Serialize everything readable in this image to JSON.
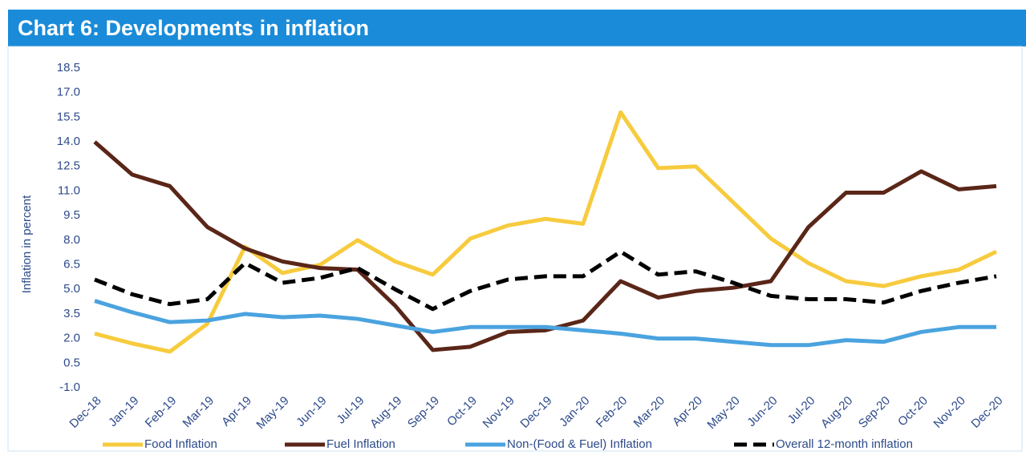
{
  "chart_data": {
    "type": "line",
    "title": "Chart 6: Developments in inflation",
    "y_label": "Inflation in percent",
    "categories": [
      "Dec-18",
      "Jan-19",
      "Feb-19",
      "Mar-19",
      "Apr-19",
      "May-19",
      "Jun-19",
      "Jul-19",
      "Aug-19",
      "Sep-19",
      "Oct-19",
      "Nov-19",
      "Dec-19",
      "Jan-20",
      "Feb-20",
      "Mar-20",
      "Apr-20",
      "May-20",
      "Jun-20",
      "Jul-20",
      "Aug-20",
      "Sep-20",
      "Oct-20",
      "Nov-20",
      "Dec-20"
    ],
    "series": [
      {
        "name": "Food Inflation",
        "color": "#f7cb3e",
        "values": [
          2.3,
          1.7,
          1.2,
          2.9,
          7.6,
          6.0,
          6.5,
          8.0,
          6.7,
          5.9,
          8.1,
          8.9,
          9.3,
          9.0,
          15.8,
          12.4,
          12.5,
          10.3,
          8.1,
          6.6,
          5.5,
          5.2,
          5.8,
          6.2,
          7.3
        ]
      },
      {
        "name": "Fuel Inflation",
        "color": "#5a2618",
        "values": [
          14.0,
          12.0,
          11.3,
          8.8,
          7.5,
          6.7,
          6.3,
          6.2,
          4.0,
          1.3,
          1.5,
          2.4,
          2.5,
          3.1,
          5.5,
          4.5,
          4.9,
          5.1,
          5.5,
          8.8,
          10.9,
          10.9,
          12.2,
          11.1,
          11.3
        ]
      },
      {
        "name": "Non-(Food & Fuel) Inflation",
        "color": "#4aa3df",
        "values": [
          4.3,
          3.6,
          3.0,
          3.1,
          3.5,
          3.3,
          3.4,
          3.2,
          2.8,
          2.4,
          2.7,
          2.7,
          2.7,
          2.5,
          2.3,
          2.0,
          2.0,
          1.8,
          1.6,
          1.6,
          1.9,
          1.8,
          2.4,
          2.7,
          2.7
        ]
      },
      {
        "name": "Overall 12-month inflation",
        "color": "#000000",
        "dashed": true,
        "values": [
          5.6,
          4.7,
          4.1,
          4.4,
          6.6,
          5.4,
          5.7,
          6.3,
          5.0,
          3.8,
          4.9,
          5.6,
          5.8,
          5.8,
          7.3,
          5.9,
          6.1,
          5.4,
          4.6,
          4.4,
          4.4,
          4.2,
          4.9,
          5.4,
          5.8
        ]
      }
    ],
    "ylim": [
      -1.0,
      18.5
    ],
    "yticks": [
      {
        "value": -1,
        "label": "-1.0"
      },
      {
        "value": 0.5,
        "label": "0.5"
      },
      {
        "value": 2,
        "label": "2.0"
      },
      {
        "value": 3.5,
        "label": "3.5"
      },
      {
        "value": 5,
        "label": "5.0"
      },
      {
        "value": 6.5,
        "label": "6.5"
      },
      {
        "value": 8,
        "label": "8.0"
      },
      {
        "value": 9.5,
        "label": "9.5"
      },
      {
        "value": 11,
        "label": "11.0"
      },
      {
        "value": 12.5,
        "label": "12.5"
      },
      {
        "value": 14,
        "label": "14.0"
      },
      {
        "value": 15.5,
        "label": "15.5"
      },
      {
        "value": 17,
        "label": "17.0"
      },
      {
        "value": 18.5,
        "label": "18.5"
      }
    ],
    "grid": false,
    "legend": "bottom"
  }
}
